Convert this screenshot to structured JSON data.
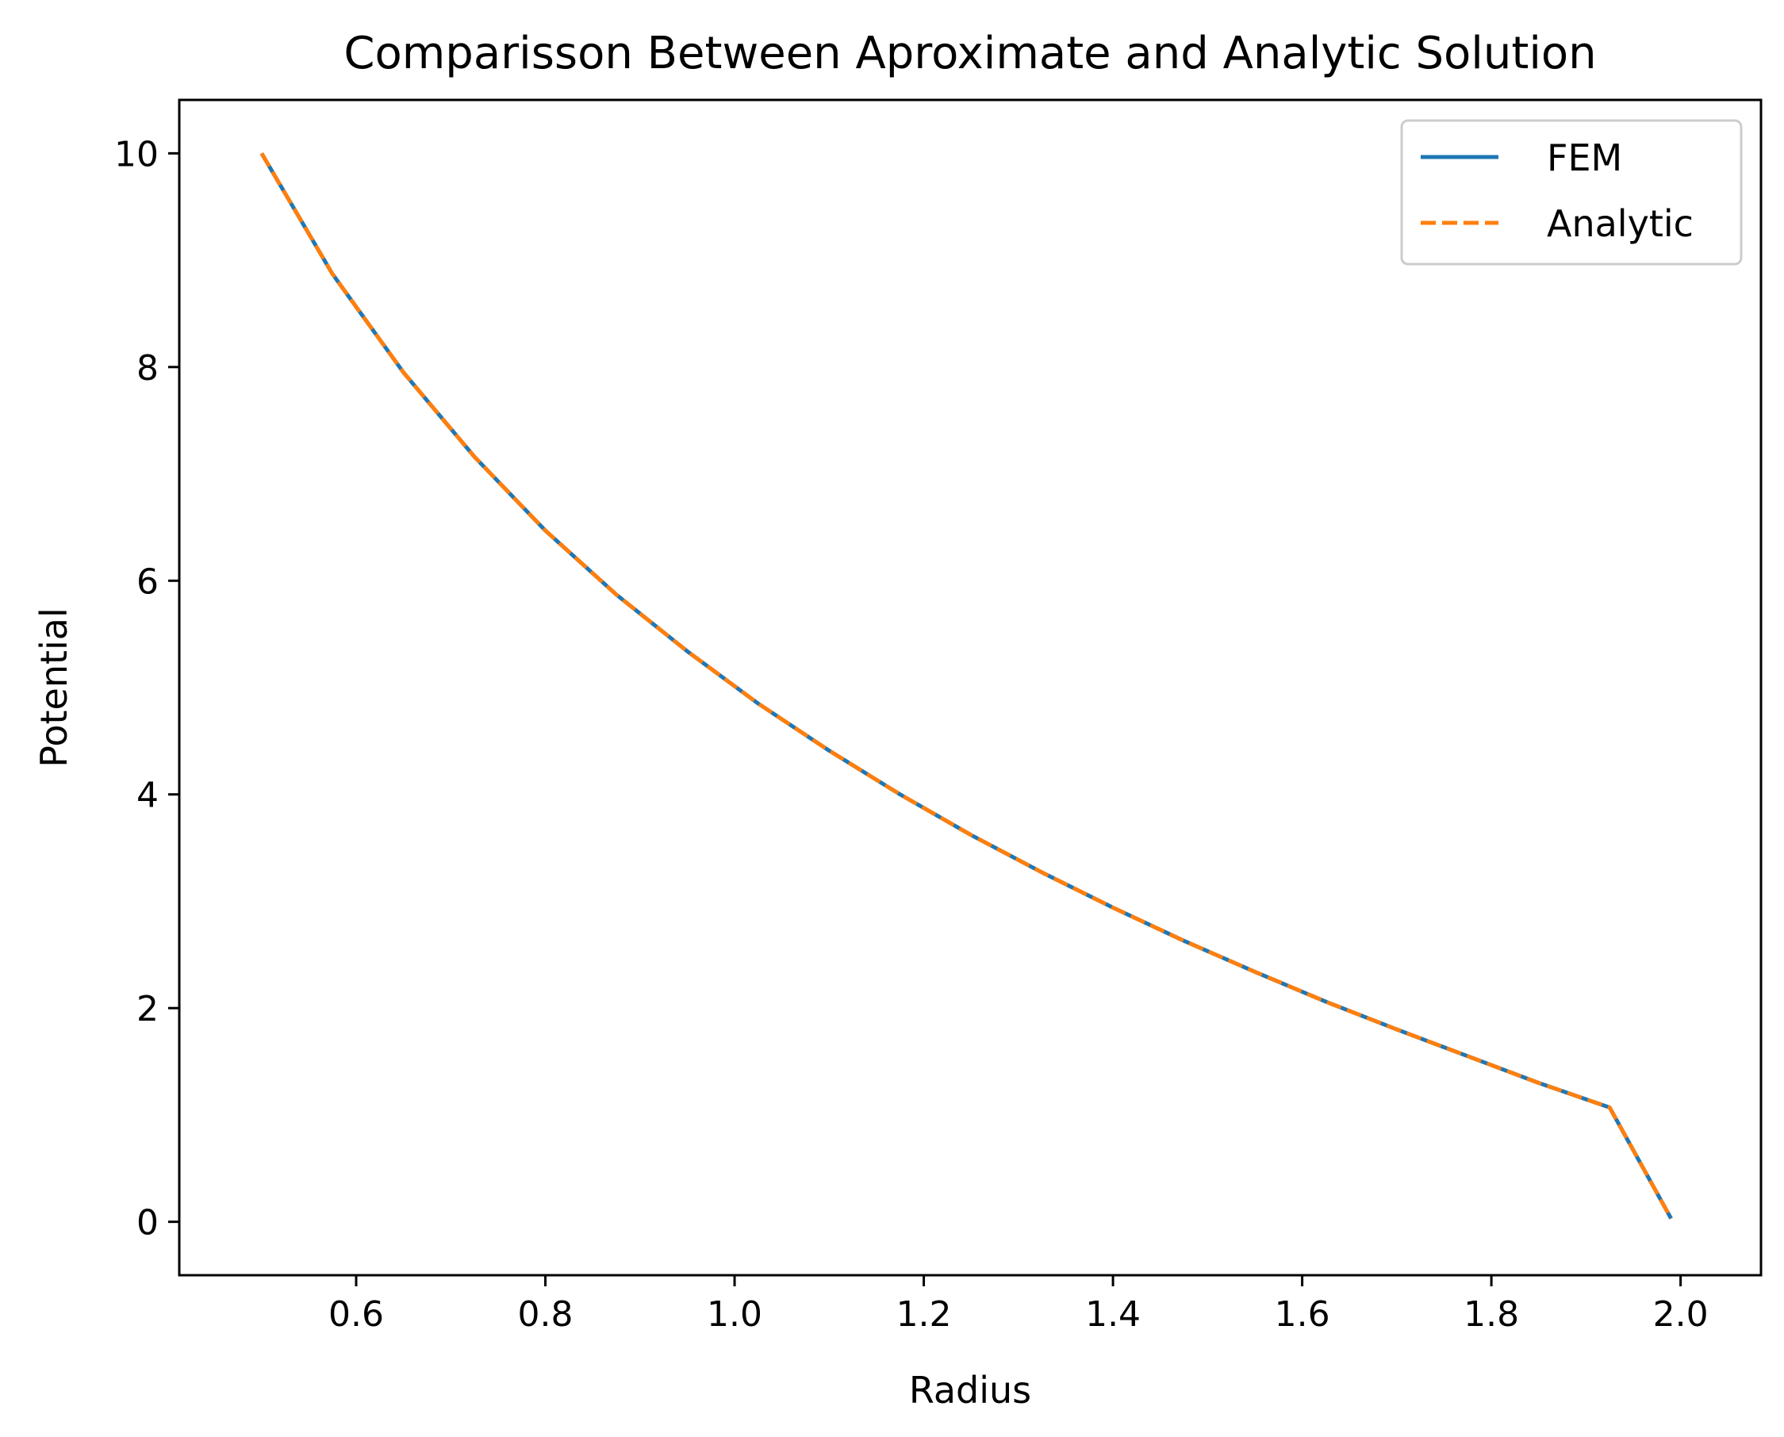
{
  "chart_data": {
    "type": "line",
    "title": "Comparisson Between Aproximate and Analytic Solution",
    "xlabel": "Radius",
    "ylabel": "Potential",
    "xlim": [
      0.413,
      2.085
    ],
    "ylim": [
      -0.5,
      10.5
    ],
    "x_ticks": [
      0.6,
      0.8,
      1.0,
      1.2,
      1.4,
      1.6,
      1.8,
      2.0
    ],
    "x_tick_labels": [
      "0.6",
      "0.8",
      "1.0",
      "1.2",
      "1.4",
      "1.6",
      "1.8",
      "2.0"
    ],
    "y_ticks": [
      0,
      2,
      4,
      6,
      8,
      10
    ],
    "y_tick_labels": [
      "0",
      "2",
      "4",
      "6",
      "8",
      "10"
    ],
    "grid": false,
    "legend_position": "top-right",
    "x": [
      0.5,
      0.575,
      0.65,
      0.725,
      0.8,
      0.875,
      0.95,
      1.025,
      1.1,
      1.175,
      1.25,
      1.325,
      1.4,
      1.475,
      1.55,
      1.625,
      1.7,
      1.775,
      1.85,
      1.925,
      1.99
    ],
    "series": [
      {
        "name": "FEM",
        "color": "#1f77b4",
        "style": "solid",
        "values": [
          10.0,
          8.87,
          7.95,
          7.16,
          6.47,
          5.87,
          5.34,
          4.85,
          4.41,
          4.0,
          3.62,
          3.27,
          2.94,
          2.63,
          2.34,
          2.06,
          1.8,
          1.55,
          1.3,
          1.07,
          0.03
        ]
      },
      {
        "name": "Analytic",
        "color": "#ff7f0e",
        "style": "dashed",
        "values": [
          10.0,
          8.87,
          7.95,
          7.16,
          6.47,
          5.87,
          5.34,
          4.85,
          4.41,
          4.0,
          3.62,
          3.27,
          2.94,
          2.63,
          2.34,
          2.06,
          1.8,
          1.55,
          1.3,
          1.07,
          0.03
        ]
      }
    ]
  }
}
